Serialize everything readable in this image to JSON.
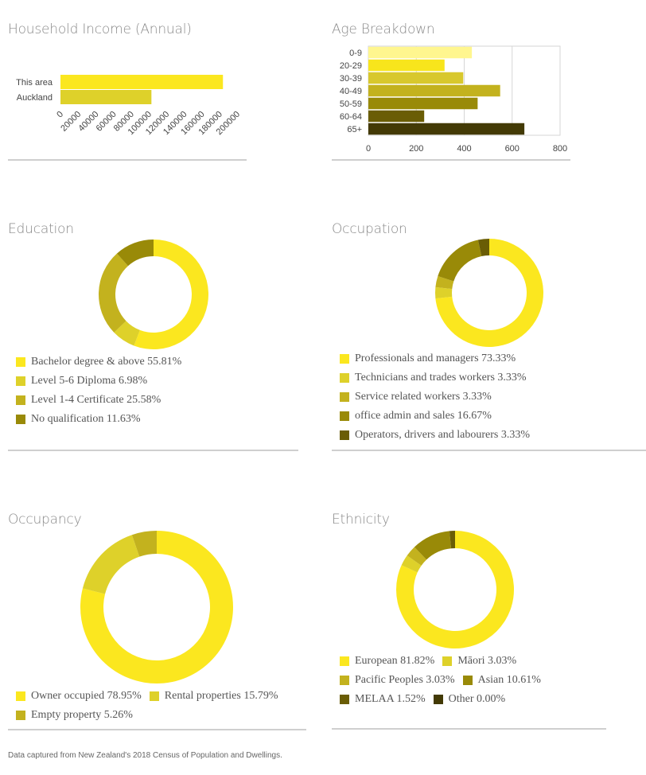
{
  "footer": "Data captured from New Zealand's 2018 Census of Population and Dwellings.",
  "chart_data": [
    {
      "id": "income",
      "type": "bar",
      "orientation": "horizontal",
      "title": "Household Income (Annual)",
      "categories": [
        "This area",
        "Auckland"
      ],
      "values": [
        184000,
        103000
      ],
      "colors": [
        "#fbe71f",
        "#ded12a"
      ],
      "xlim": [
        0,
        200000
      ],
      "ticks": [
        0,
        20000,
        40000,
        60000,
        80000,
        100000,
        120000,
        140000,
        160000,
        180000,
        200000
      ],
      "grid": false,
      "legend": "none"
    },
    {
      "id": "age",
      "type": "bar",
      "orientation": "horizontal",
      "title": "Age Breakdown",
      "categories": [
        "0-9",
        "20-29",
        "30-39",
        "40-49",
        "50-59",
        "60-64",
        "65+"
      ],
      "values": [
        432,
        318,
        396,
        550,
        456,
        233,
        651
      ],
      "colors": [
        "#fff68f",
        "#f8e51c",
        "#d8c82d",
        "#c3b21e",
        "#998a08",
        "#6a5d05",
        "#433a05"
      ],
      "xlim": [
        0,
        800
      ],
      "ticks": [
        0,
        200,
        400,
        600,
        800
      ],
      "grid": true,
      "legend": "none"
    },
    {
      "id": "education",
      "type": "pie",
      "donut": true,
      "title": "Education",
      "labels": [
        "Bachelor degree & above 55.81%",
        "Level 5-6 Diploma 6.98%",
        "Level 1-4 Certificate 25.58%",
        "No qualification 11.63%"
      ],
      "values": [
        55.81,
        6.98,
        25.58,
        11.63
      ],
      "colors": [
        "#fbe71f",
        "#ded12a",
        "#c3b21e",
        "#998a08"
      ],
      "legend": "bottom"
    },
    {
      "id": "occupation",
      "type": "pie",
      "donut": true,
      "title": "Occupation",
      "labels": [
        "Professionals and managers 73.33%",
        "Technicians and trades workers 3.33%",
        "Service related workers 3.33%",
        "office admin and sales 16.67%",
        "Operators, drivers and labourers 3.33%"
      ],
      "values": [
        73.33,
        3.33,
        3.33,
        16.67,
        3.33
      ],
      "colors": [
        "#fbe71f",
        "#ded12a",
        "#c3b21e",
        "#998a08",
        "#6a5d05"
      ],
      "legend": "bottom"
    },
    {
      "id": "occupancy",
      "type": "pie",
      "donut": true,
      "title": "Occupancy",
      "labels": [
        "Owner occupied 78.95%",
        "Rental properties 15.79%",
        "Empty property 5.26%"
      ],
      "values": [
        78.95,
        15.79,
        5.26
      ],
      "colors": [
        "#fbe71f",
        "#ded12a",
        "#c3b21e"
      ],
      "legend": "bottom"
    },
    {
      "id": "ethnicity",
      "type": "pie",
      "donut": true,
      "title": "Ethnicity",
      "labels": [
        "European 81.82%",
        "Māori 3.03%",
        "Pacific Peoples 3.03%",
        "Asian 10.61%",
        "MELAA 1.52%",
        "Other 0.00%"
      ],
      "values": [
        81.82,
        3.03,
        3.03,
        10.61,
        1.52,
        0.0
      ],
      "colors": [
        "#fbe71f",
        "#ded12a",
        "#c3b21e",
        "#998a08",
        "#6a5d05",
        "#433a05"
      ],
      "legend": "bottom"
    }
  ]
}
